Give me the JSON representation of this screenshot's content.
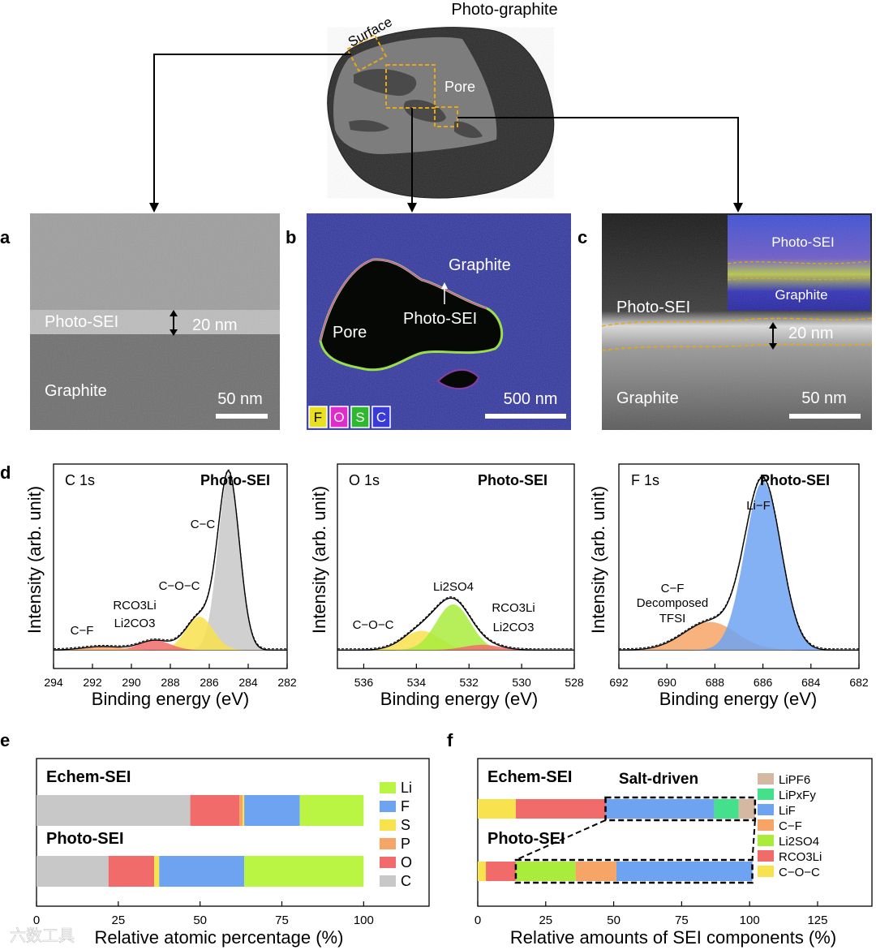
{
  "figure": {
    "top_label": "Photo-graphite",
    "particle_labels": {
      "surface": "Surface",
      "pore": "Pore"
    },
    "panel_letters": {
      "a": "a",
      "b": "b",
      "c": "c",
      "d": "d",
      "e": "e",
      "f": "f"
    }
  },
  "micrographs": {
    "a": {
      "layer": "Photo-SEI",
      "thickness": "20 nm",
      "base": "Graphite",
      "scale": "50 nm"
    },
    "b": {
      "top": "Graphite",
      "layer": "Photo-SEI",
      "pore": "Pore",
      "scale": "500 nm",
      "legend": [
        {
          "label": "F",
          "color": "#e8e020"
        },
        {
          "label": "O",
          "color": "#e02cc8"
        },
        {
          "label": "S",
          "color": "#2fb82f"
        },
        {
          "label": "C",
          "color": "#3a3ad8"
        }
      ]
    },
    "c": {
      "layer": "Photo-SEI",
      "thickness": "20 nm",
      "base": "Graphite",
      "scale": "50 nm",
      "inset_top": "Photo-SEI",
      "inset_bottom": "Graphite"
    }
  },
  "colors": {
    "Li": "#b9f542",
    "F": "#6ea3f2",
    "S": "#f8e24e",
    "P": "#f6a566",
    "O": "#f26b6b",
    "C": "#c8c8c8",
    "LiPF6": "#d4b8a2",
    "LiPxFy": "#44e08c",
    "LiF": "#6ea3f2",
    "C-F": "#f6a566",
    "Li2SO4": "#a9ec3c",
    "RCO3Li": "#f26b6b",
    "C-O-C": "#f8e24e"
  },
  "chart_data": [
    {
      "type": "line",
      "panel": "d",
      "title": "C 1s",
      "sample": "Photo-SEI",
      "xlabel": "Binding energy (eV)",
      "ylabel": "Intensity (arb. unit)",
      "xlim": [
        294,
        282
      ],
      "xticks": [
        294,
        292,
        290,
        288,
        286,
        284,
        282
      ],
      "peaks": [
        {
          "name": "C−C",
          "center": 285.0,
          "height": 1.0,
          "width": 0.55,
          "color": "#c8c8c8"
        },
        {
          "name": "C−O−C",
          "center": 286.5,
          "height": 0.19,
          "width": 0.7,
          "color": "#f8e24e"
        },
        {
          "name": "RCO3Li Li2CO3",
          "center": 288.8,
          "height": 0.055,
          "width": 0.8,
          "color": "#f26b6b"
        },
        {
          "name": "C−F",
          "center": 291.5,
          "height": 0.02,
          "width": 1.0,
          "color": "#f6a566"
        }
      ],
      "annotations": [
        "C−C",
        "C−O−C",
        "RCO3Li",
        "Li2CO3",
        "C−F"
      ]
    },
    {
      "type": "line",
      "panel": "d",
      "title": "O 1s",
      "sample": "Photo-SEI",
      "xlabel": "Binding energy (eV)",
      "ylabel": "Intensity (arb. unit)",
      "xlim": [
        537,
        528
      ],
      "xticks": [
        536,
        534,
        532,
        530,
        528
      ],
      "peaks": [
        {
          "name": "C−O−C",
          "center": 533.8,
          "height": 0.11,
          "width": 0.7,
          "color": "#f8e24e"
        },
        {
          "name": "Li2SO4",
          "center": 532.6,
          "height": 0.26,
          "width": 0.65,
          "color": "#a9ec3c"
        },
        {
          "name": "RCO3Li Li2CO3",
          "center": 531.5,
          "height": 0.03,
          "width": 0.7,
          "color": "#f26b6b"
        }
      ],
      "annotations": [
        "Li2SO4",
        "C−O−C",
        "RCO3Li",
        "Li2CO3"
      ]
    },
    {
      "type": "line",
      "panel": "d",
      "title": "F 1s",
      "sample": "Photo-SEI",
      "xlabel": "Binding energy (eV)",
      "ylabel": "Intensity (arb. unit)",
      "xlim": [
        692,
        682
      ],
      "xticks": [
        692,
        690,
        688,
        686,
        684,
        682
      ],
      "peaks": [
        {
          "name": "C−F Decomposed TFSI",
          "center": 688.2,
          "height": 0.16,
          "width": 1.1,
          "color": "#f6a566"
        },
        {
          "name": "Li−F",
          "center": 686.0,
          "height": 0.96,
          "width": 0.75,
          "color": "#6ea3f2"
        }
      ],
      "annotations": [
        "Li−F",
        "C−F",
        "Decomposed",
        "TFSI"
      ]
    },
    {
      "type": "bar",
      "orientation": "horizontal-stacked",
      "panel": "e",
      "categories": [
        "Echem-SEI",
        "Photo-SEI"
      ],
      "stack_order": [
        "C",
        "O",
        "P",
        "S",
        "F",
        "Li"
      ],
      "series": [
        {
          "name": "C",
          "values": [
            47,
            22
          ]
        },
        {
          "name": "O",
          "values": [
            15,
            14
          ]
        },
        {
          "name": "P",
          "values": [
            1,
            0
          ]
        },
        {
          "name": "S",
          "values": [
            0.5,
            1.5
          ]
        },
        {
          "name": "F",
          "values": [
            17,
            26
          ]
        },
        {
          "name": "Li",
          "values": [
            19.5,
            36.5
          ]
        }
      ],
      "legend": [
        "Li",
        "F",
        "S",
        "P",
        "O",
        "C"
      ],
      "xlabel": "Relative atomic percentage (%)",
      "xlim": [
        0,
        120
      ],
      "xticks": [
        0,
        25,
        50,
        75,
        100
      ]
    },
    {
      "type": "bar",
      "orientation": "horizontal-stacked",
      "panel": "f",
      "categories": [
        "Echem-SEI",
        "Photo-SEI"
      ],
      "stack_order": [
        "C-O-C",
        "RCO3Li",
        "Li2SO4",
        "C-F",
        "LiF",
        "LiPxFy",
        "LiPF6"
      ],
      "series": [
        {
          "name": "C-O-C",
          "values": [
            14,
            3
          ]
        },
        {
          "name": "RCO3Li",
          "values": [
            33,
            11
          ]
        },
        {
          "name": "Li2SO4",
          "values": [
            0,
            22
          ]
        },
        {
          "name": "C-F",
          "values": [
            0,
            15
          ]
        },
        {
          "name": "LiF",
          "values": [
            40,
            50
          ]
        },
        {
          "name": "LiPxFy",
          "values": [
            9,
            0
          ]
        },
        {
          "name": "LiPF6",
          "values": [
            6,
            0
          ]
        }
      ],
      "legend": [
        "LiPF6",
        "LiPxFy",
        "LiF",
        "C−F",
        "Li2SO4",
        "RCO3Li",
        "C−O−C"
      ],
      "annotation": "Salt-driven",
      "xlabel": "Relative amounts of SEI components (%)",
      "xlim": [
        0,
        145
      ],
      "xticks": [
        0,
        25,
        50,
        75,
        100,
        125
      ]
    }
  ],
  "watermark": "六数工具"
}
